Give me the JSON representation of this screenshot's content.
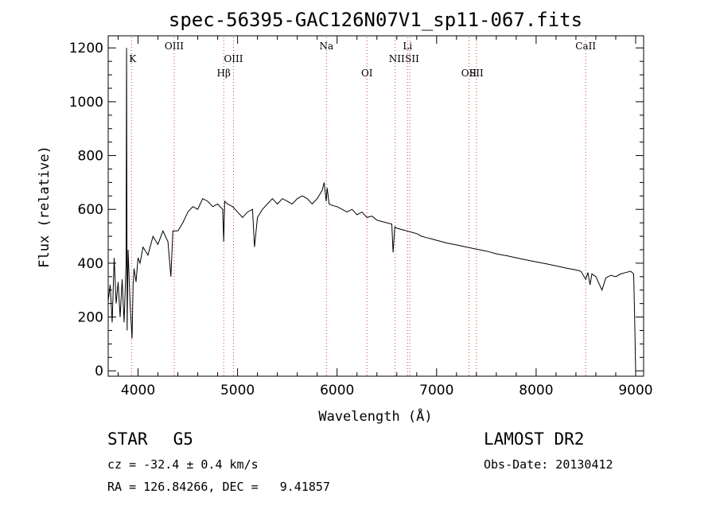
{
  "chart_data": {
    "type": "line",
    "title": "spec-56395-GAC126N07V1_sp11-067.fits",
    "xlabel": "Wavelength (Å)",
    "ylabel": "Flux (relative)",
    "xlim": [
      3700,
      9080
    ],
    "ylim": [
      -20,
      1245
    ],
    "x_ticks": [
      4000,
      5000,
      6000,
      7000,
      8000,
      9000
    ],
    "y_ticks": [
      0,
      200,
      400,
      600,
      800,
      1000,
      1200
    ],
    "grid": false,
    "series": [
      {
        "x": [
          3700,
          3720,
          3740,
          3760,
          3780,
          3800,
          3820,
          3840,
          3860,
          3880,
          3885,
          3890,
          3895,
          3900,
          3920,
          3940,
          3950,
          3960,
          3980,
          4000,
          4020,
          4050,
          4100,
          4150,
          4200,
          4250,
          4300,
          4330,
          4350,
          4400,
          4450,
          4500,
          4550,
          4600,
          4650,
          4700,
          4750,
          4800,
          4850,
          4861,
          4870,
          4900,
          4950,
          5000,
          5050,
          5100,
          5150,
          5170,
          5200,
          5250,
          5300,
          5350,
          5400,
          5450,
          5500,
          5550,
          5600,
          5650,
          5700,
          5750,
          5800,
          5850,
          5870,
          5890,
          5900,
          5920,
          5950,
          6000,
          6050,
          6100,
          6150,
          6200,
          6250,
          6300,
          6350,
          6400,
          6450,
          6500,
          6550,
          6563,
          6580,
          6600,
          6650,
          6700,
          6750,
          6800,
          6850,
          6900,
          6950,
          7000,
          7100,
          7200,
          7300,
          7400,
          7500,
          7600,
          7700,
          7800,
          7900,
          8000,
          8100,
          8200,
          8300,
          8400,
          8450,
          8498,
          8520,
          8542,
          8560,
          8600,
          8662,
          8700,
          8750,
          8800,
          8850,
          8900,
          8950,
          8980,
          8990,
          9000
        ],
        "y": [
          260,
          320,
          180,
          420,
          250,
          330,
          200,
          340,
          180,
          400,
          1200,
          150,
          300,
          450,
          250,
          120,
          320,
          380,
          330,
          420,
          400,
          460,
          430,
          500,
          470,
          520,
          480,
          350,
          520,
          520,
          550,
          590,
          610,
          600,
          640,
          630,
          610,
          620,
          600,
          480,
          630,
          620,
          610,
          590,
          570,
          590,
          600,
          460,
          570,
          600,
          620,
          640,
          620,
          640,
          630,
          620,
          640,
          650,
          640,
          620,
          640,
          670,
          700,
          630,
          680,
          620,
          615,
          610,
          600,
          590,
          600,
          580,
          590,
          570,
          575,
          560,
          555,
          550,
          545,
          440,
          535,
          530,
          525,
          520,
          515,
          510,
          500,
          495,
          490,
          485,
          475,
          468,
          460,
          452,
          445,
          435,
          428,
          420,
          412,
          405,
          398,
          390,
          382,
          375,
          370,
          340,
          365,
          320,
          360,
          350,
          300,
          345,
          355,
          350,
          360,
          365,
          370,
          360,
          200,
          0
        ]
      }
    ],
    "line_markers": [
      {
        "label": "K",
        "wavelength": 3934
      },
      {
        "label": "OIII",
        "wavelength": 4363
      },
      {
        "label": "Hβ",
        "wavelength": 4861
      },
      {
        "label": "OIII",
        "wavelength": 4959
      },
      {
        "label": "Na",
        "wavelength": 5893
      },
      {
        "label": "OI",
        "wavelength": 6300
      },
      {
        "label": "NII",
        "wavelength": 6584
      },
      {
        "label": "Li",
        "wavelength": 6708
      },
      {
        "label": "SII",
        "wavelength": 6731
      },
      {
        "label": "OII",
        "wavelength": 7325
      },
      {
        "label": "SII",
        "wavelength": 7400
      },
      {
        "label": "CaII",
        "wavelength": 8498
      }
    ]
  },
  "footer": {
    "object_class": "STAR",
    "subclass": "G5",
    "redshift": "cz = -32.4 ± 0.4 km/s",
    "coords": "RA = 126.84266, DEC =   9.41857",
    "survey": "LAMOST DR2",
    "obs_date": "Obs-Date: 20130412"
  }
}
